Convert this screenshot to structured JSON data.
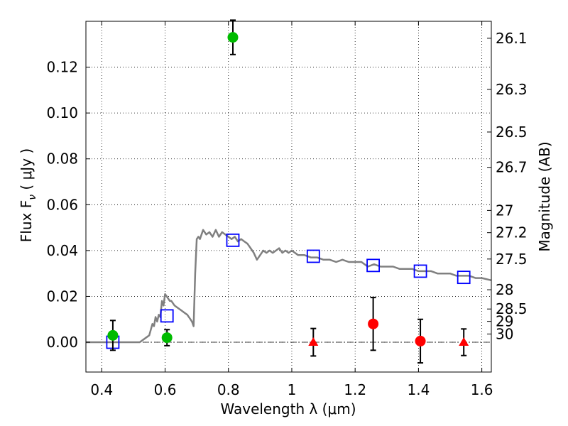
{
  "chart_data": {
    "type": "scatter",
    "xlabel": "Wavelength  λ (μm)",
    "ylabel": "Flux  F",
    "ylabel_sub": "ν",
    "ylabel_unit": " ( μJy )",
    "ylabel_right": "Magnitude (AB)",
    "xlim": [
      0.35,
      1.63
    ],
    "ylim": [
      -0.013,
      0.14
    ],
    "grid": true,
    "x_ticks": [
      {
        "value": 0.4,
        "label": "0.4"
      },
      {
        "value": 0.6,
        "label": "0.6"
      },
      {
        "value": 0.8,
        "label": "0.8"
      },
      {
        "value": 1.0,
        "label": "1"
      },
      {
        "value": 1.2,
        "label": "1.2"
      },
      {
        "value": 1.4,
        "label": "1.4"
      },
      {
        "value": 1.6,
        "label": "1.6"
      }
    ],
    "y_ticks": [
      {
        "value": 0.0,
        "label": "0.00"
      },
      {
        "value": 0.02,
        "label": "0.02"
      },
      {
        "value": 0.04,
        "label": "0.04"
      },
      {
        "value": 0.06,
        "label": "0.06"
      },
      {
        "value": 0.08,
        "label": "0.08"
      },
      {
        "value": 0.1,
        "label": "0.10"
      },
      {
        "value": 0.12,
        "label": "0.12"
      }
    ],
    "right_ticks": [
      {
        "flux": 0.1326,
        "label": "26.1"
      },
      {
        "flux": 0.1103,
        "label": "26.3"
      },
      {
        "flux": 0.0917,
        "label": "26.5"
      },
      {
        "flux": 0.0763,
        "label": "26.7"
      },
      {
        "flux": 0.0575,
        "label": "27"
      },
      {
        "flux": 0.0478,
        "label": "27.2"
      },
      {
        "flux": 0.0363,
        "label": "27.5"
      },
      {
        "flux": 0.0229,
        "label": "28"
      },
      {
        "flux": 0.0145,
        "label": "28.5"
      },
      {
        "flux": 0.0091,
        "label": "29"
      },
      {
        "flux": 0.0036,
        "label": "30"
      }
    ],
    "series": [
      {
        "kind": "model",
        "color": "#808080",
        "x": [
          0.35,
          0.52,
          0.55,
          0.56,
          0.565,
          0.57,
          0.575,
          0.58,
          0.585,
          0.59,
          0.595,
          0.6,
          0.605,
          0.61,
          0.615,
          0.62,
          0.63,
          0.64,
          0.65,
          0.66,
          0.67,
          0.68,
          0.685,
          0.69,
          0.695,
          0.7,
          0.705,
          0.71,
          0.72,
          0.73,
          0.74,
          0.75,
          0.76,
          0.77,
          0.78,
          0.79,
          0.8,
          0.81,
          0.82,
          0.83,
          0.84,
          0.85,
          0.86,
          0.87,
          0.88,
          0.89,
          0.9,
          0.91,
          0.92,
          0.93,
          0.94,
          0.95,
          0.96,
          0.97,
          0.98,
          0.99,
          1.0,
          1.02,
          1.04,
          1.06,
          1.08,
          1.1,
          1.12,
          1.14,
          1.16,
          1.18,
          1.2,
          1.22,
          1.24,
          1.26,
          1.28,
          1.3,
          1.32,
          1.34,
          1.36,
          1.38,
          1.4,
          1.42,
          1.44,
          1.46,
          1.48,
          1.5,
          1.52,
          1.54,
          1.56,
          1.58,
          1.6,
          1.63
        ],
        "y": [
          0.0,
          0.0,
          0.003,
          0.008,
          0.007,
          0.011,
          0.009,
          0.012,
          0.011,
          0.018,
          0.016,
          0.021,
          0.02,
          0.019,
          0.018,
          0.018,
          0.016,
          0.015,
          0.014,
          0.013,
          0.012,
          0.01,
          0.009,
          0.007,
          0.03,
          0.045,
          0.046,
          0.045,
          0.049,
          0.047,
          0.048,
          0.046,
          0.049,
          0.046,
          0.048,
          0.047,
          0.046,
          0.045,
          0.046,
          0.044,
          0.045,
          0.044,
          0.043,
          0.041,
          0.039,
          0.036,
          0.038,
          0.04,
          0.039,
          0.04,
          0.039,
          0.04,
          0.041,
          0.039,
          0.04,
          0.039,
          0.04,
          0.038,
          0.038,
          0.037,
          0.037,
          0.036,
          0.036,
          0.035,
          0.036,
          0.035,
          0.035,
          0.035,
          0.033,
          0.034,
          0.033,
          0.033,
          0.033,
          0.032,
          0.032,
          0.032,
          0.031,
          0.031,
          0.031,
          0.03,
          0.03,
          0.03,
          0.029,
          0.029,
          0.029,
          0.028,
          0.028,
          0.027
        ]
      },
      {
        "kind": "model-photometry",
        "marker": "square",
        "color": "#0000ff",
        "x": [
          0.435,
          0.606,
          0.814,
          1.068,
          1.257,
          1.406,
          1.543
        ],
        "y": [
          0.0,
          0.0115,
          0.0445,
          0.0375,
          0.0335,
          0.031,
          0.0283
        ]
      },
      {
        "kind": "detections",
        "marker": "circle",
        "color": "#00bb00",
        "x": [
          0.435,
          0.606,
          0.814
        ],
        "y": [
          0.003,
          0.002,
          0.133
        ],
        "err": [
          0.0065,
          0.0035,
          0.0075
        ]
      },
      {
        "kind": "detections",
        "marker": "circle",
        "color": "#ff0000",
        "x": [
          1.257,
          1.406
        ],
        "y": [
          0.008,
          0.0005
        ],
        "err": [
          0.0115,
          0.0095
        ]
      },
      {
        "kind": "upper-limits",
        "marker": "triangle",
        "color": "#ff0000",
        "x": [
          1.068,
          1.543
        ],
        "y": [
          0.0,
          0.0
        ],
        "err": [
          0.006,
          0.0058
        ]
      }
    ]
  }
}
